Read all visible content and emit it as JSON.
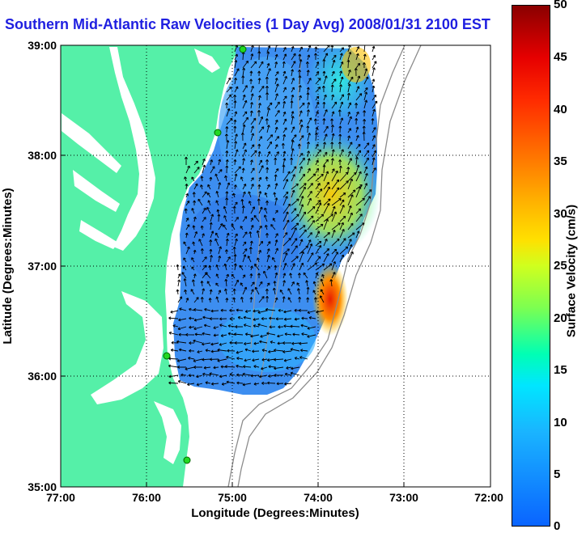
{
  "title": "Southern Mid-Atlantic Raw Velocities (1 Day Avg) 2008/01/31 2100 EST",
  "map": {
    "xlabel": "Longitude (Degrees:Minutes)",
    "ylabel": "Latitude (Degrees:Minutes)",
    "lon_ticks": [
      "77:00",
      "76:00",
      "75:00",
      "74:00",
      "73:00",
      "72:00"
    ],
    "lat_ticks": [
      "39:00",
      "38:00",
      "37:00",
      "36:00",
      "35:00"
    ],
    "lon_range": [
      -77,
      -72
    ],
    "lat_range": [
      35,
      39
    ],
    "land_color": "#55f0a8",
    "grid": "dotted"
  },
  "colorbar": {
    "label": "Surface Velocity (cm/s)",
    "ticks": [
      "50",
      "45",
      "40",
      "35",
      "30",
      "25",
      "20",
      "15",
      "10",
      "5",
      "0"
    ],
    "range": [
      0,
      50
    ],
    "colormap": "jet"
  }
}
